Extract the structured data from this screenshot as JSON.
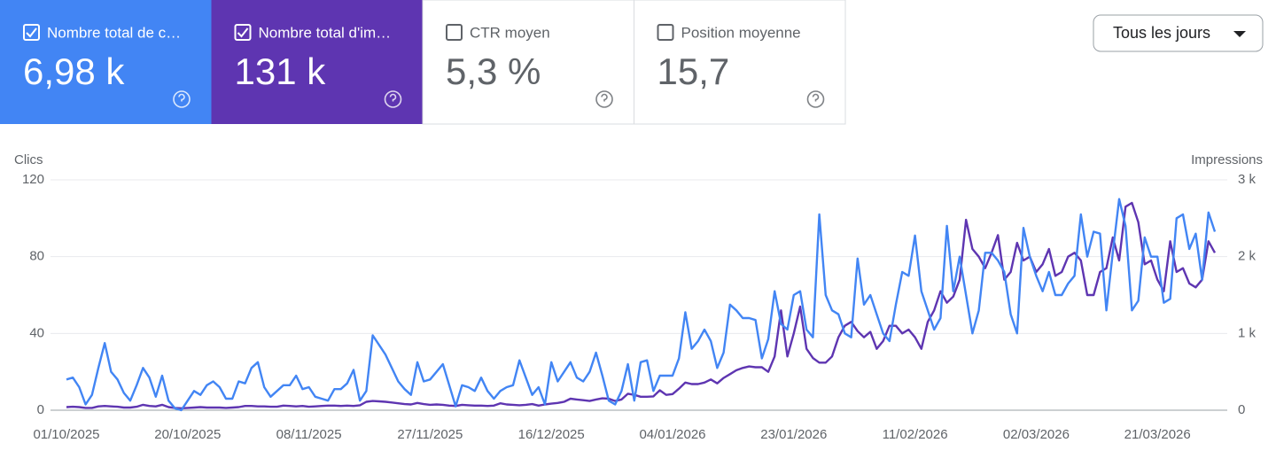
{
  "cards": [
    {
      "label": "Nombre total de c…",
      "value": "6,98 k",
      "checked": true,
      "color": "#4285f4"
    },
    {
      "label": "Nombre total d'im…",
      "value": "131 k",
      "checked": true,
      "color": "#5e35b1"
    },
    {
      "label": "CTR moyen",
      "value": "5,3 %",
      "checked": false,
      "color": "#ffffff"
    },
    {
      "label": "Position moyenne",
      "value": "15,7",
      "checked": false,
      "color": "#ffffff"
    }
  ],
  "dropdown": "Tous les jours",
  "chart_data": {
    "type": "line",
    "y_label": "Clics",
    "y2_label": "Impressions",
    "categories": [
      "01/10/2025",
      null,
      null,
      null,
      null,
      null,
      null,
      null,
      null,
      null,
      null,
      null,
      null,
      null,
      null,
      null,
      null,
      null,
      null,
      "20/10/2025",
      null,
      null,
      null,
      null,
      null,
      null,
      null,
      null,
      null,
      null,
      null,
      null,
      null,
      null,
      null,
      null,
      null,
      null,
      "08/11/2025",
      null,
      null,
      null,
      null,
      null,
      null,
      null,
      null,
      null,
      null,
      null,
      null,
      null,
      null,
      null,
      null,
      null,
      null,
      "27/11/2025",
      null,
      null,
      null,
      null,
      null,
      null,
      null,
      null,
      null,
      null,
      null,
      null,
      null,
      null,
      null,
      null,
      null,
      null,
      "16/12/2025",
      null,
      null,
      null,
      null,
      null,
      null,
      null,
      null,
      null,
      null,
      null,
      null,
      null,
      null,
      null,
      null,
      null,
      null,
      "04/01/2026",
      null,
      null,
      null,
      null,
      null,
      null,
      null,
      null,
      null,
      null,
      null,
      null,
      null,
      null,
      null,
      null,
      null,
      null,
      "23/01/2026",
      null,
      null,
      null,
      null,
      null,
      null,
      null,
      null,
      null,
      null,
      null,
      null,
      null,
      null,
      null,
      null,
      null,
      null,
      "11/02/2026",
      null,
      null,
      null,
      null,
      null,
      null,
      null,
      null,
      null,
      null,
      null,
      null,
      null,
      null,
      null,
      null,
      null,
      null,
      "02/03/2026",
      null,
      null,
      null,
      null,
      null,
      null,
      null,
      null,
      null,
      null,
      null,
      null,
      null,
      null,
      null,
      null,
      null,
      null,
      "21/03/2026",
      null,
      null,
      null,
      null,
      null,
      null,
      null,
      null,
      null
    ],
    "series": [
      {
        "color": "#4285f4",
        "axis": "y",
        "values": [
          16,
          17,
          12,
          3,
          8,
          22,
          35,
          20,
          16,
          9,
          5,
          13,
          22,
          17,
          7,
          18,
          5,
          1,
          0,
          5,
          10,
          8,
          13,
          15,
          12,
          6,
          6,
          15,
          14,
          22,
          25,
          12,
          7,
          10,
          13,
          13,
          18,
          11,
          12,
          7,
          6,
          5,
          11,
          11,
          14,
          21,
          5,
          10,
          39,
          34,
          29,
          22,
          15,
          11,
          8,
          25,
          15,
          16,
          20,
          24,
          13,
          2,
          13,
          12,
          10,
          17,
          10,
          6,
          10,
          12,
          13,
          26,
          17,
          8,
          12,
          3,
          25,
          15,
          20,
          25,
          17,
          15,
          20,
          30,
          18,
          5,
          3,
          10,
          24,
          5,
          25,
          26,
          10,
          18,
          18,
          18,
          27,
          51,
          32,
          36,
          42,
          36,
          22,
          30,
          55,
          52,
          48,
          48,
          47,
          27,
          37,
          62,
          45,
          42,
          60,
          62,
          42,
          38,
          102,
          60,
          52,
          50,
          40,
          38,
          79,
          55,
          60,
          50,
          40,
          36,
          55,
          72,
          70,
          91,
          62,
          52,
          42,
          48,
          96,
          62,
          80,
          60,
          40,
          52,
          82,
          82,
          78,
          72,
          50,
          40,
          95,
          80,
          70,
          62,
          72,
          60,
          60,
          66,
          70,
          102,
          80,
          93,
          92,
          52,
          82,
          110,
          96,
          52,
          57,
          90,
          80,
          80,
          56,
          58,
          100,
          102,
          84,
          92,
          68,
          103,
          93
        ]
      },
      {
        "color": "#5e35b1",
        "axis": "y2",
        "values": [
          40,
          45,
          40,
          30,
          30,
          50,
          55,
          50,
          45,
          35,
          35,
          45,
          70,
          55,
          50,
          70,
          40,
          30,
          25,
          30,
          35,
          40,
          35,
          35,
          35,
          30,
          35,
          40,
          55,
          55,
          50,
          50,
          45,
          45,
          60,
          55,
          50,
          55,
          45,
          50,
          55,
          60,
          60,
          55,
          60,
          55,
          65,
          110,
          120,
          115,
          110,
          100,
          90,
          80,
          75,
          95,
          80,
          70,
          75,
          70,
          60,
          55,
          70,
          65,
          60,
          60,
          55,
          60,
          90,
          75,
          70,
          65,
          70,
          80,
          60,
          75,
          85,
          95,
          110,
          150,
          140,
          130,
          120,
          140,
          155,
          150,
          120,
          140,
          215,
          200,
          175,
          175,
          180,
          260,
          200,
          210,
          280,
          360,
          340,
          340,
          360,
          400,
          350,
          420,
          470,
          520,
          550,
          570,
          560,
          560,
          500,
          700,
          1300,
          700,
          1000,
          1350,
          800,
          680,
          620,
          620,
          700,
          950,
          1100,
          1150,
          1030,
          950,
          1020,
          800,
          900,
          1100,
          1100,
          1000,
          1050,
          950,
          800,
          1150,
          1300,
          1550,
          1400,
          1480,
          1700,
          2480,
          2100,
          2000,
          1850,
          2050,
          2280,
          1700,
          1800,
          2180,
          1950,
          2000,
          1800,
          1900,
          2100,
          1750,
          1800,
          2000,
          2050,
          1950,
          1500,
          1500,
          1800,
          1850,
          2250,
          1950,
          2650,
          2700,
          2450,
          1900,
          1950,
          1700,
          1550,
          2200,
          1800,
          1850,
          1650,
          1600,
          1700,
          2200,
          2050
        ]
      }
    ],
    "ylim": [
      0,
      120
    ],
    "yticks": [
      0,
      40,
      80,
      120
    ],
    "y2lim": [
      0,
      3000
    ],
    "y2ticks": [
      0,
      {
        "value": 1000,
        "label": "1 k"
      },
      {
        "value": 2000,
        "label": "2 k"
      },
      {
        "value": 3000,
        "label": "3 k"
      }
    ],
    "grid": true
  }
}
